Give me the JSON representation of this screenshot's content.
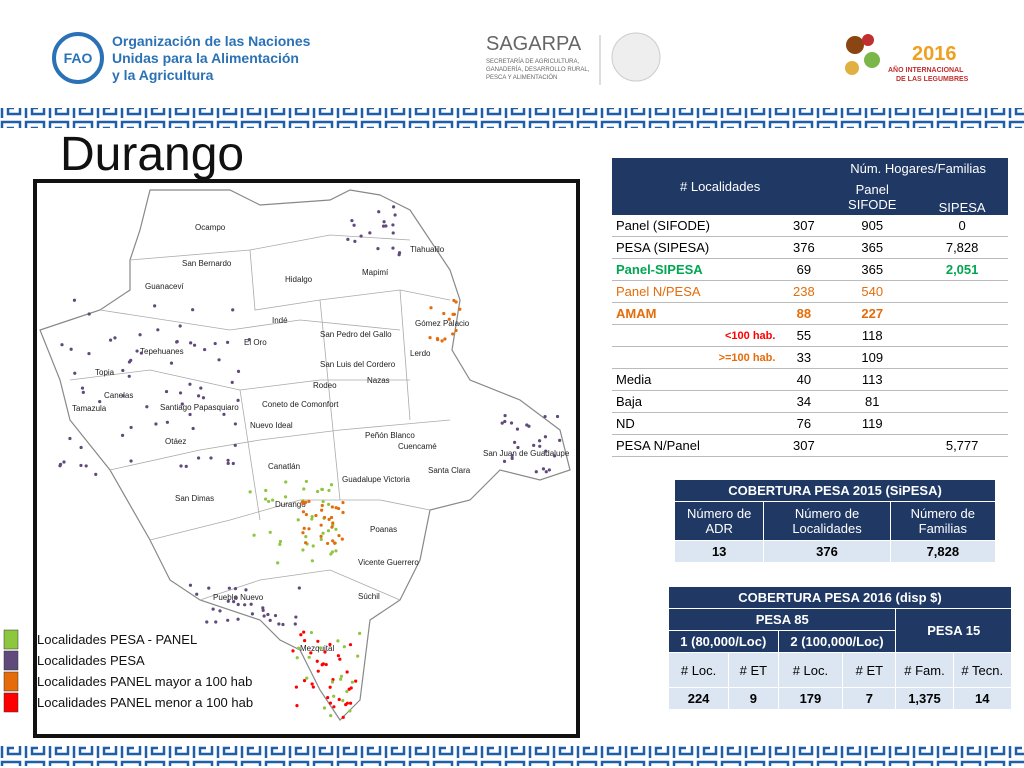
{
  "header": {
    "fao_acronym": "FAO",
    "fao_name": [
      "Organización de las Naciones",
      "Unidas para la Alimentación",
      "y la Agricultura"
    ],
    "sagarpa": "SAGARPA",
    "sagarpa_sub": [
      "SECRETARÍA DE AGRICULTURA,",
      "GANADERÍA, DESARROLLO RURAL,",
      "PESCA Y ALIMENTACIÓN"
    ],
    "year": "2016",
    "year_sub": [
      "AÑO INTERNACIONAL",
      "DE LAS LEGUMBRES"
    ]
  },
  "title": "Durango",
  "map": {
    "labels": [
      "Ocampo",
      "San Bernardo",
      "Guanaceví",
      "Tlahualilo",
      "Mapimí",
      "Hidalgo",
      "Indé",
      "El Oro",
      "San Pedro del Gallo",
      "Gómez Palacio",
      "Tepehuanes",
      "Lerdo",
      "San Luis del Cordero",
      "Nazas",
      "Rodeo",
      "Topia",
      "Canelas",
      "Tamazula",
      "Santiago Papasquiaro",
      "Coneto de Comonfort",
      "Nuevo Ideal",
      "Otáez",
      "Peñón Blanco",
      "Cuencamé",
      "San Juan de Guadalupe",
      "Santa Clara",
      "Canatlán",
      "Guadalupe Victoria",
      "San Dimas",
      "Durango",
      "Poanas",
      "Vicente Guerrero",
      "Súchil",
      "Pueblo Nuevo",
      "Mezquital"
    ],
    "legend": [
      {
        "label": "Localidades PESA - PANEL",
        "color": "#8dc63f"
      },
      {
        "label": "Localidades PESA",
        "color": "#604a7b"
      },
      {
        "label": "Localidades PANEL mayor a 100 hab",
        "color": "#e46c0a"
      },
      {
        "label": "Localidades PANEL menor a 100 hab",
        "color": "#ff0000"
      }
    ]
  },
  "table1": {
    "col_localidades": "# Localidades",
    "col_hogares": "Núm. Hogares/Familias",
    "col_panel": "Panel SIFODE",
    "col_sipesa": "SIPESA",
    "rows": [
      [
        "Panel (SIFODE)",
        "307",
        "905",
        "0"
      ],
      [
        "PESA (SIPESA)",
        "376",
        "365",
        "7,828"
      ],
      [
        "Panel-SIPESA",
        "69",
        "365",
        "2,051"
      ],
      [
        "Panel N/PESA",
        "238",
        "540",
        null
      ],
      [
        "AMAM",
        "88",
        "227",
        null
      ],
      [
        "<100 hab.",
        "55",
        "118",
        null
      ],
      [
        ">=100 hab.",
        "33",
        "109",
        null
      ],
      [
        "Media",
        "40",
        "113",
        null
      ],
      [
        "Baja",
        "34",
        "81",
        null
      ],
      [
        "ND",
        "76",
        "119",
        null
      ],
      [
        "PESA N/Panel",
        "307",
        null,
        "5,777"
      ]
    ]
  },
  "table2": {
    "title": "COBERTURA  PESA 2015 (SiPESA)",
    "headers": [
      "Número de ADR",
      "Número de Localidades",
      "Número de Familias"
    ],
    "values": [
      "13",
      "376",
      "7,828"
    ]
  },
  "table3": {
    "title": "COBERTURA PESA 2016 (disp $)",
    "group_85": "PESA 85",
    "group_15": "PESA 15",
    "sub": [
      "1 (80,000/Loc)",
      "2 (100,000/Loc)"
    ],
    "headers": [
      "#  Loc.",
      "# ET",
      "# Loc.",
      "# ET",
      "# Fam.",
      "# Tecn."
    ],
    "values": [
      "224",
      "9",
      "179",
      "7",
      "1,375",
      "14"
    ]
  }
}
